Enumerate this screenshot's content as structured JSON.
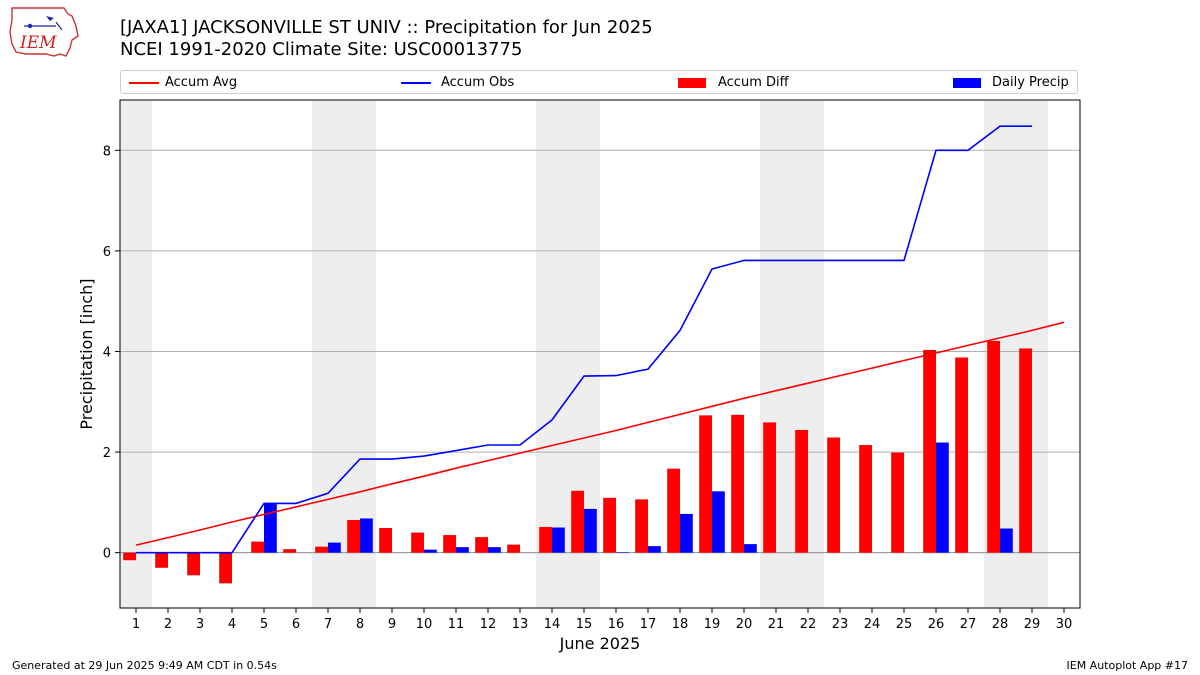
{
  "header": {
    "logo_text": "IEM",
    "title_line1": "[JAXA1] JACKSONVILLE ST UNIV :: Precipitation for Jun 2025",
    "title_line2": "NCEI 1991-2020 Climate Site: USC00013775"
  },
  "colors": {
    "accum_avg": "#ff0000",
    "accum_obs": "#0000ff",
    "accum_diff": "#ff0000",
    "daily_precip": "#0000ff",
    "weekend_shade": "#eeeeee",
    "grid": "#b0b0b0"
  },
  "legend": {
    "items": [
      {
        "label": "Accum Avg",
        "kind": "line",
        "color": "#ff0000"
      },
      {
        "label": "Accum Obs",
        "kind": "line",
        "color": "#0000ff"
      },
      {
        "label": "Accum Diff",
        "kind": "box",
        "color": "#ff0000"
      },
      {
        "label": "Daily Precip",
        "kind": "box",
        "color": "#0000ff"
      }
    ]
  },
  "chart_data": {
    "type": "bar",
    "xlabel": "June 2025",
    "ylabel": "Precipitation [inch]",
    "xlim": [
      0.5,
      30.5
    ],
    "ylim": [
      -1.1,
      9.0
    ],
    "yticks": [
      0,
      2,
      4,
      6,
      8
    ],
    "grid": "horizontal",
    "legend_placement": "top",
    "days": [
      1,
      2,
      3,
      4,
      5,
      6,
      7,
      8,
      9,
      10,
      11,
      12,
      13,
      14,
      15,
      16,
      17,
      18,
      19,
      20,
      21,
      22,
      23,
      24,
      25,
      26,
      27,
      28,
      29,
      30
    ],
    "shaded_days": [
      1,
      7,
      8,
      14,
      15,
      21,
      22,
      28,
      29
    ],
    "series": [
      {
        "name": "Accum Avg",
        "kind": "line",
        "x": [
          1,
          2,
          3,
          4,
          5,
          6,
          7,
          8,
          9,
          10,
          11,
          12,
          13,
          14,
          15,
          16,
          17,
          18,
          19,
          20,
          21,
          22,
          23,
          24,
          25,
          26,
          27,
          28,
          29,
          30
        ],
        "values": [
          0.15,
          0.3,
          0.45,
          0.61,
          0.76,
          0.91,
          1.06,
          1.21,
          1.37,
          1.52,
          1.68,
          1.83,
          1.98,
          2.13,
          2.28,
          2.43,
          2.59,
          2.75,
          2.91,
          3.07,
          3.22,
          3.37,
          3.52,
          3.67,
          3.82,
          3.97,
          4.12,
          4.27,
          4.42,
          4.58
        ]
      },
      {
        "name": "Accum Obs",
        "kind": "line",
        "x": [
          1,
          2,
          3,
          4,
          5,
          6,
          7,
          8,
          9,
          10,
          11,
          12,
          13,
          14,
          15,
          16,
          17,
          18,
          19,
          20,
          21,
          22,
          23,
          24,
          25,
          26,
          27,
          28,
          29
        ],
        "values": [
          0.0,
          0.0,
          0.0,
          0.0,
          0.98,
          0.98,
          1.18,
          1.86,
          1.86,
          1.92,
          2.03,
          2.14,
          2.14,
          2.64,
          3.51,
          3.52,
          3.65,
          4.42,
          5.64,
          5.81,
          5.81,
          5.81,
          5.81,
          5.81,
          5.81,
          8.0,
          8.0,
          8.48,
          8.48
        ]
      },
      {
        "name": "Accum Diff",
        "kind": "bar",
        "x": [
          1,
          2,
          3,
          4,
          5,
          6,
          7,
          8,
          9,
          10,
          11,
          12,
          13,
          14,
          15,
          16,
          17,
          18,
          19,
          20,
          21,
          22,
          23,
          24,
          25,
          26,
          27,
          28,
          29
        ],
        "values": [
          -0.15,
          -0.3,
          -0.45,
          -0.61,
          0.22,
          0.07,
          0.12,
          0.65,
          0.49,
          0.4,
          0.35,
          0.31,
          0.16,
          0.51,
          1.23,
          1.09,
          1.06,
          1.67,
          2.73,
          2.74,
          2.59,
          2.44,
          2.29,
          2.14,
          1.99,
          4.03,
          3.88,
          4.21,
          4.06
        ]
      },
      {
        "name": "Daily Precip",
        "kind": "bar",
        "x": [
          1,
          2,
          3,
          4,
          5,
          6,
          7,
          8,
          9,
          10,
          11,
          12,
          13,
          14,
          15,
          16,
          17,
          18,
          19,
          20,
          21,
          22,
          23,
          24,
          25,
          26,
          27,
          28,
          29
        ],
        "values": [
          0,
          0,
          0,
          0,
          0.98,
          0,
          0.2,
          0.68,
          0,
          0.06,
          0.11,
          0.11,
          0,
          0.5,
          0.87,
          0.01,
          0.13,
          0.77,
          1.22,
          0.17,
          0,
          0,
          0,
          0,
          0,
          2.19,
          0,
          0.48,
          0
        ]
      }
    ]
  },
  "footer": {
    "generated": "Generated at 29 Jun 2025 9:49 AM CDT in 0.54s",
    "app": "IEM Autoplot App #17"
  }
}
